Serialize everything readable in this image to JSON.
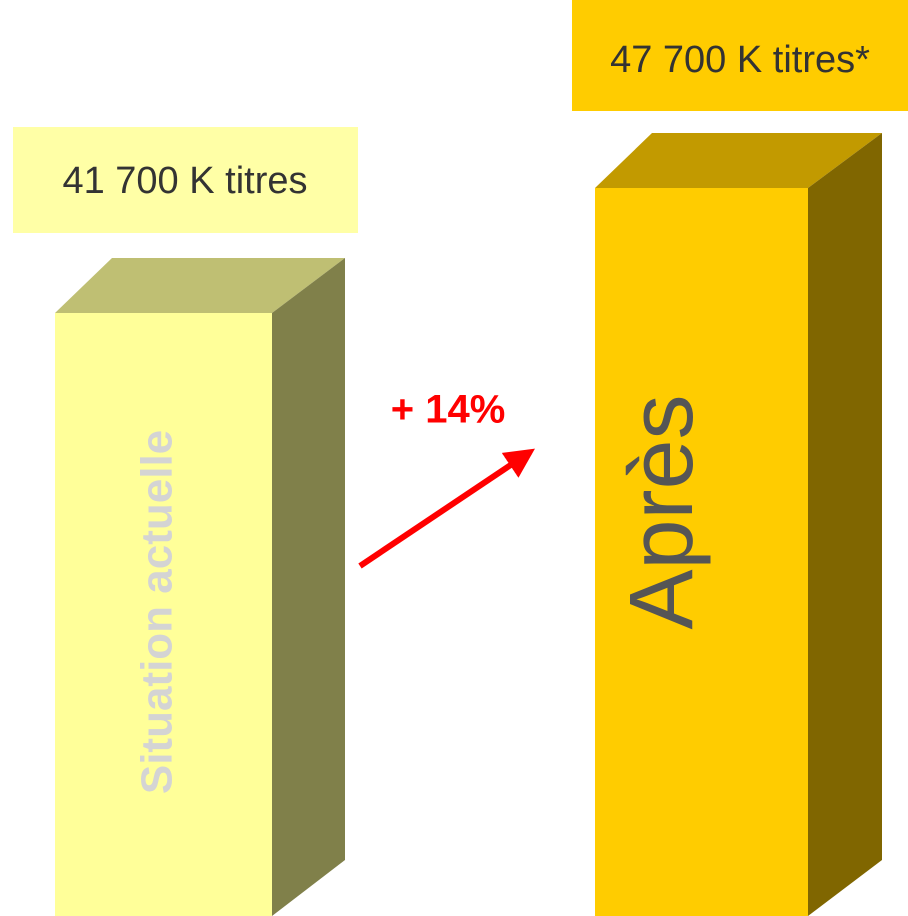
{
  "before": {
    "label": "41 700 K titres",
    "name": "Situation actuelle"
  },
  "after": {
    "label": "47 700 K titres*",
    "name": "Après"
  },
  "change": "+ 14%"
}
